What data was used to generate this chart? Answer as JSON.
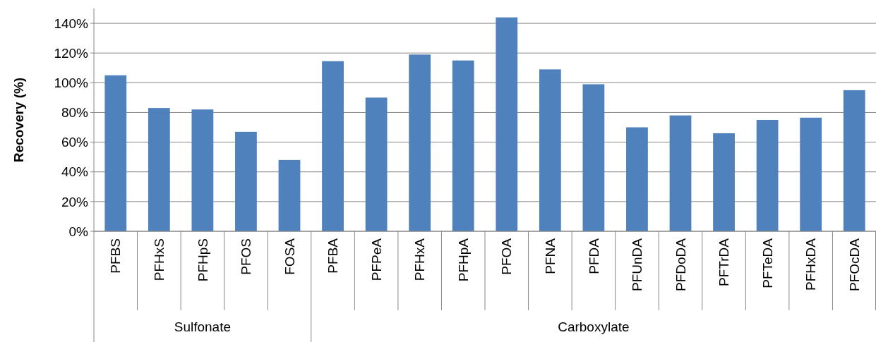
{
  "chart_data": {
    "type": "bar",
    "ylabel": "Recovery (%)",
    "categories": [
      "PFBS",
      "PFHxS",
      "PFHpS",
      "PFOS",
      "FOSA",
      "PFBA",
      "PFPeA",
      "PFHxA",
      "PFHpA",
      "PFOA",
      "PFNA",
      "PFDA",
      "PFUnDA",
      "PFDoDA",
      "PFTrDA",
      "PFTeDA",
      "PFHxDA",
      "PFOcDA"
    ],
    "values": [
      105,
      83,
      82,
      67,
      48,
      114.5,
      90,
      119,
      115,
      144,
      109,
      99,
      70,
      78,
      66,
      75,
      76.5,
      95
    ],
    "color": "#4f81bd",
    "ylim": [
      0,
      150
    ],
    "yticks": [
      {
        "value": 0,
        "label": "0%"
      },
      {
        "value": 20,
        "label": "20%"
      },
      {
        "value": 40,
        "label": "40%"
      },
      {
        "value": 60,
        "label": "60%"
      },
      {
        "value": 80,
        "label": "80%"
      },
      {
        "value": 100,
        "label": "100%"
      },
      {
        "value": 120,
        "label": "120%"
      },
      {
        "value": 140,
        "label": "140%"
      }
    ],
    "grid": "y",
    "annotations": [
      "Sulfonate",
      "Carboxylate"
    ]
  }
}
